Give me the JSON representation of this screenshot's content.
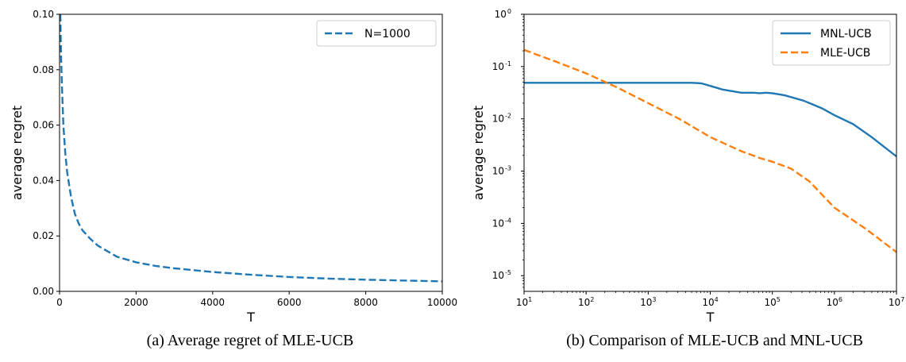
{
  "captions": {
    "a": "(a) Average regret of MLE-UCB",
    "b": "(b) Comparison of MLE-UCB and MNL-UCB"
  },
  "chart_data": [
    {
      "type": "line",
      "title": "",
      "xlabel": "T",
      "ylabel": "average regret",
      "xlim": [
        0,
        10000
      ],
      "ylim": [
        0,
        0.1
      ],
      "xscale": "linear",
      "yscale": "linear",
      "xticks": [
        0,
        2000,
        4000,
        6000,
        8000,
        10000
      ],
      "xtick_labels": [
        "0",
        "2000",
        "4000",
        "6000",
        "8000",
        "10000"
      ],
      "yticks": [
        0,
        0.02,
        0.04,
        0.06,
        0.08,
        0.1
      ],
      "ytick_labels": [
        "0.00",
        "0.02",
        "0.04",
        "0.06",
        "0.08",
        "0.10"
      ],
      "grid": false,
      "legend": "top-right",
      "series": [
        {
          "name": "N=1000",
          "style": "dashed",
          "color": "#1f77b4",
          "x": [
            20,
            40,
            60,
            100,
            150,
            200,
            300,
            400,
            500,
            600,
            800,
            1000,
            1500,
            2000,
            2500,
            3000,
            4000,
            5000,
            6000,
            7000,
            8000,
            9000,
            10000
          ],
          "y": [
            0.1,
            0.085,
            0.075,
            0.06,
            0.05,
            0.043,
            0.034,
            0.028,
            0.0245,
            0.022,
            0.019,
            0.0165,
            0.0125,
            0.0105,
            0.0092,
            0.0083,
            0.007,
            0.006,
            0.0052,
            0.0046,
            0.0042,
            0.0039,
            0.0036
          ]
        }
      ]
    },
    {
      "type": "line",
      "title": "",
      "xlabel": "T",
      "ylabel": "average regret",
      "xlim": [
        1,
        7
      ],
      "ylim": [
        -5.3,
        0
      ],
      "xscale": "log",
      "yscale": "log",
      "x_values_are": "log10(T)",
      "y_values_are": "log10(average regret)",
      "xticks": [
        1,
        2,
        3,
        4,
        5,
        6,
        7
      ],
      "xtick_labels": [
        [
          "10",
          "1"
        ],
        [
          "10",
          "2"
        ],
        [
          "10",
          "3"
        ],
        [
          "10",
          "4"
        ],
        [
          "10",
          "5"
        ],
        [
          "10",
          "6"
        ],
        [
          "10",
          "7"
        ]
      ],
      "yticks": [
        -5,
        -4,
        -3,
        -2,
        -1,
        0
      ],
      "ytick_labels": [
        [
          "10",
          "-5"
        ],
        [
          "10",
          "-4"
        ],
        [
          "10",
          "-3"
        ],
        [
          "10",
          "-2"
        ],
        [
          "10",
          "-1"
        ],
        [
          "10",
          "0"
        ]
      ],
      "grid": false,
      "legend": "top-right",
      "series": [
        {
          "name": "MNL-UCB",
          "style": "solid",
          "color": "#1f77b4",
          "x": [
            1,
            2,
            3,
            3.7,
            3.85,
            4,
            4.2,
            4.5,
            4.7,
            4.8,
            4.9,
            5,
            5.2,
            5.5,
            5.8,
            6,
            6.3,
            6.6,
            7
          ],
          "y": [
            -1.31,
            -1.31,
            -1.31,
            -1.31,
            -1.32,
            -1.37,
            -1.44,
            -1.5,
            -1.5,
            -1.51,
            -1.5,
            -1.51,
            -1.55,
            -1.65,
            -1.8,
            -1.93,
            -2.1,
            -2.35,
            -2.72
          ]
        },
        {
          "name": "MLE-UCB",
          "style": "dashed",
          "color": "#ff7f0e",
          "x": [
            1,
            1.5,
            2,
            2.5,
            3,
            3.5,
            4,
            4.5,
            4.8,
            5,
            5.3,
            5.6,
            6,
            6.5,
            7
          ],
          "y": [
            -0.68,
            -0.9,
            -1.13,
            -1.4,
            -1.7,
            -2.0,
            -2.35,
            -2.62,
            -2.75,
            -2.82,
            -2.95,
            -3.2,
            -3.7,
            -4.1,
            -4.55
          ]
        }
      ]
    }
  ]
}
